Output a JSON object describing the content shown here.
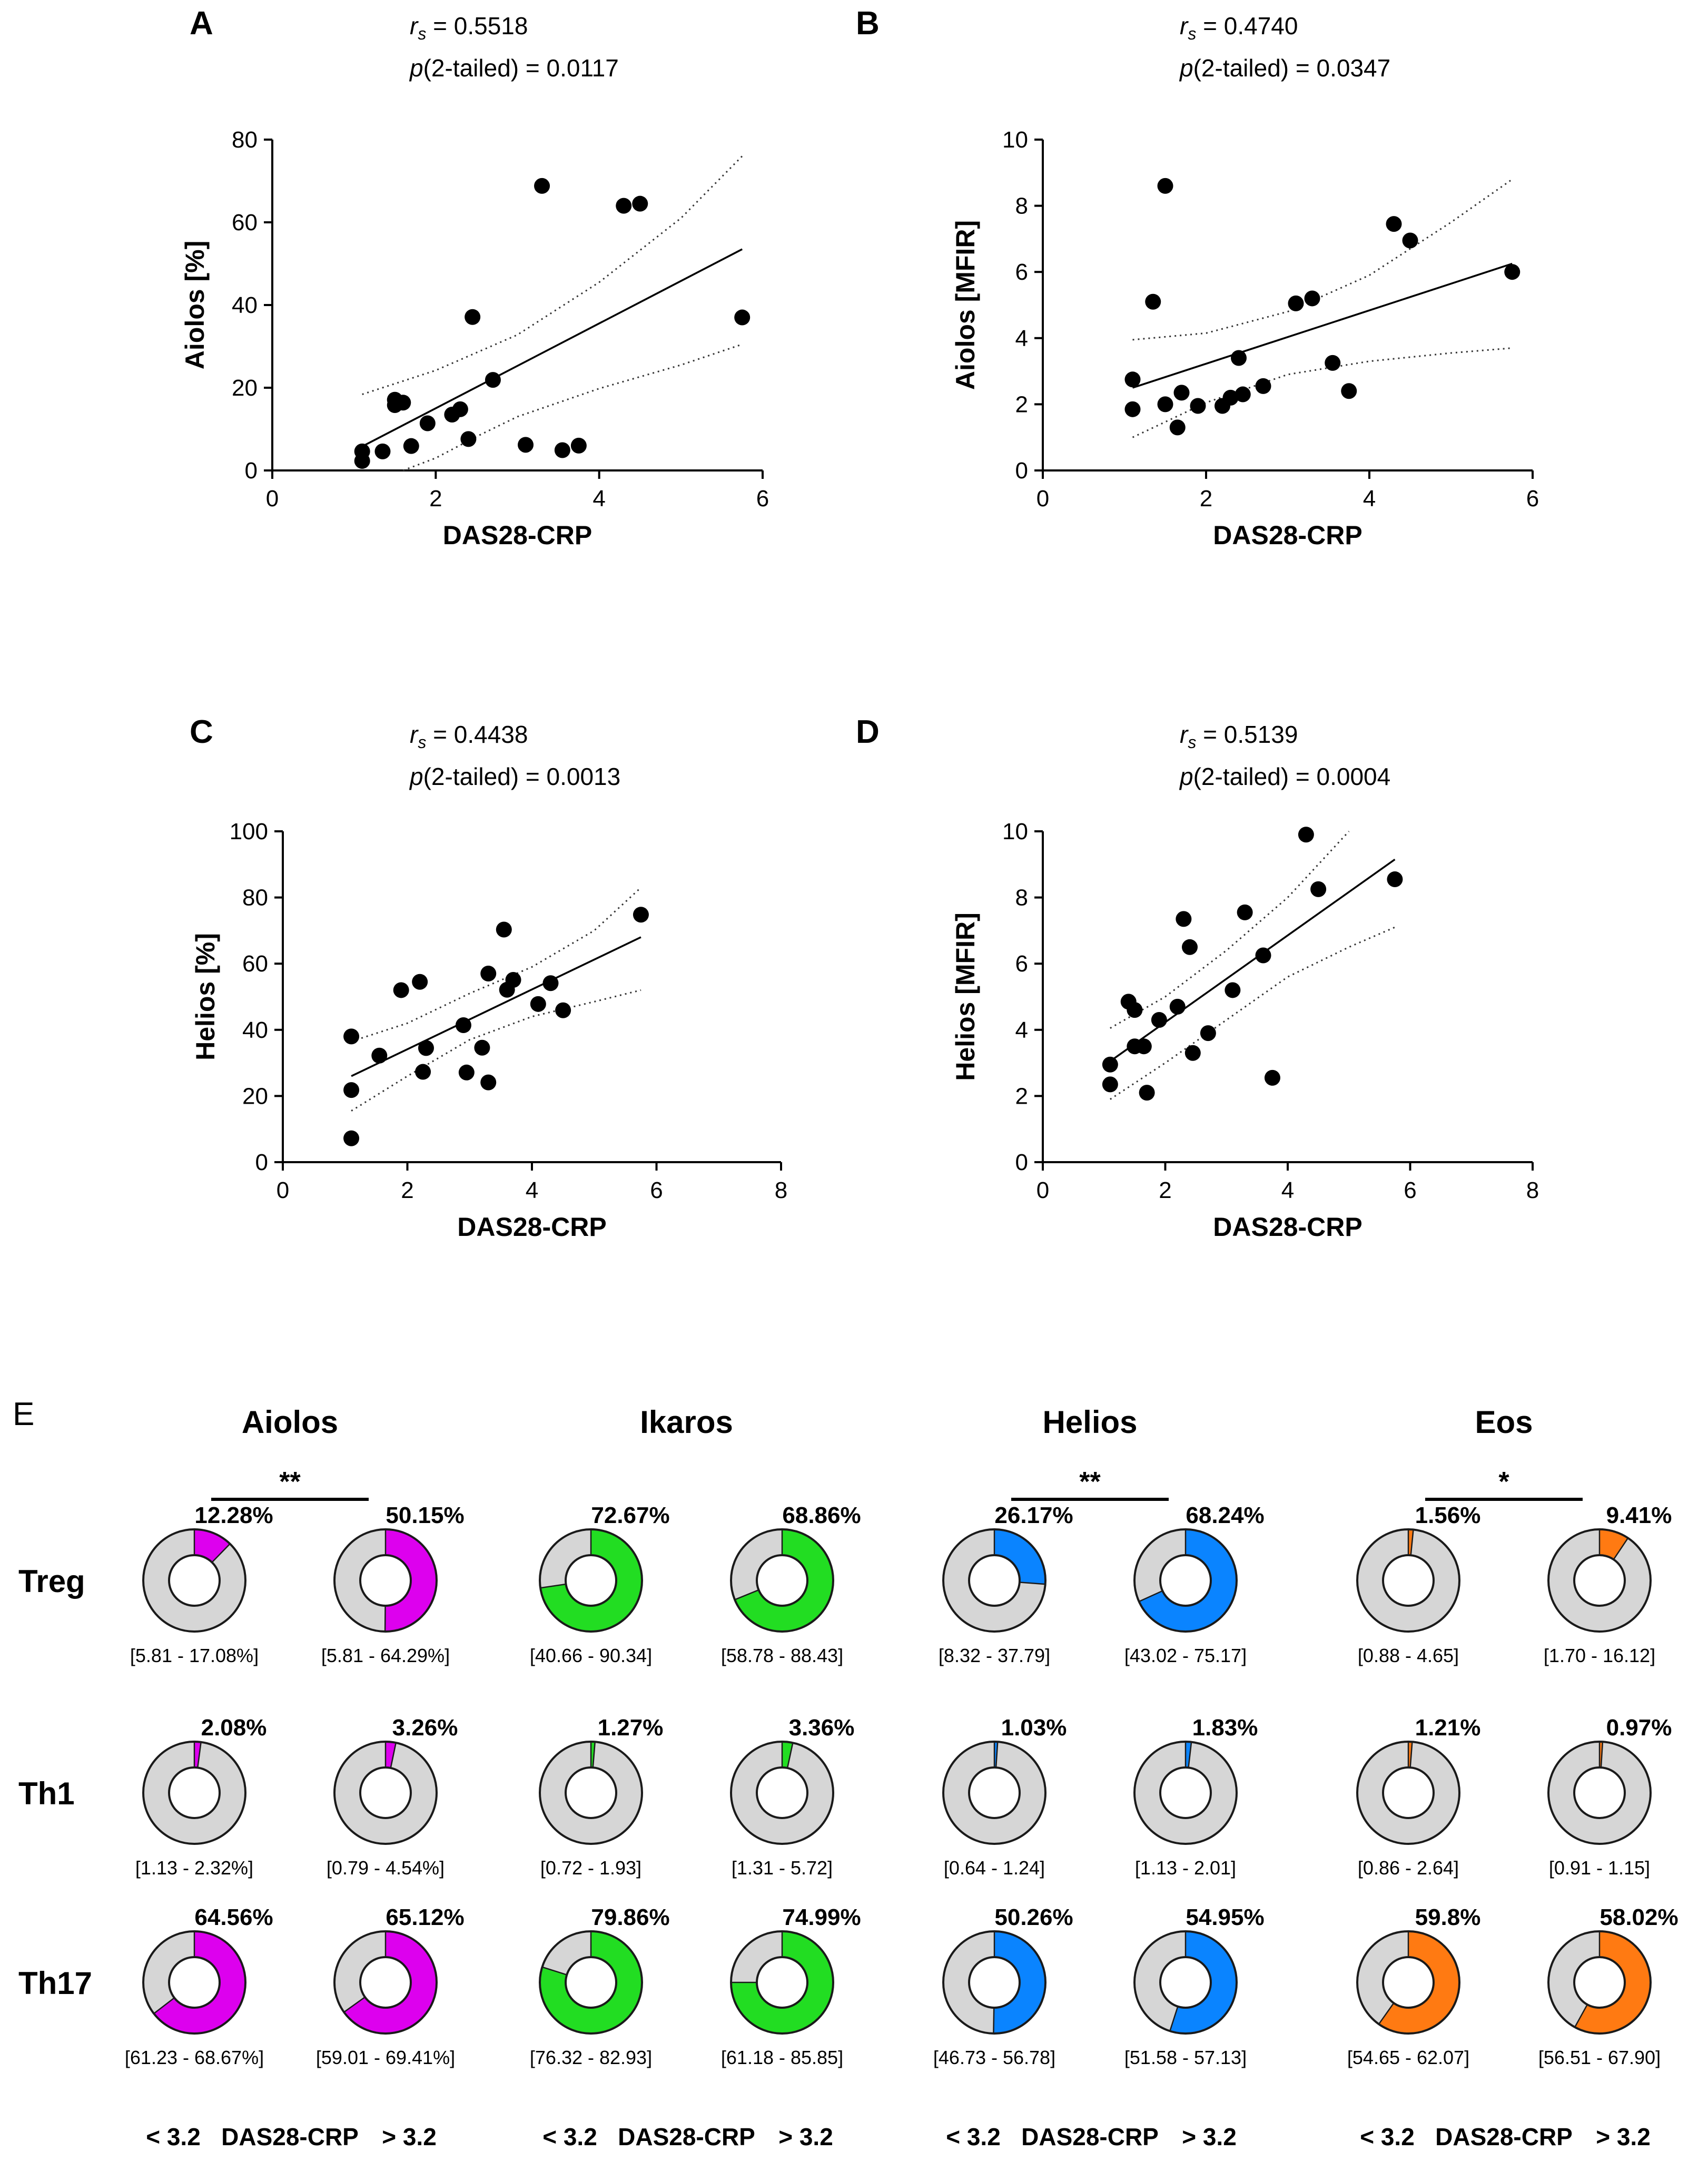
{
  "figure": {
    "panel_e_letter": "E",
    "colors": {
      "Aiolos": "#dd00ee",
      "Ikaros": "#22dd22",
      "Helios": "#0a84ff",
      "Eos": "#ff7a12",
      "rest": "#d6d6d6",
      "outline": "#1a1a1a"
    }
  },
  "chart_data": [
    {
      "type": "scatter",
      "panel": "A",
      "stat_r_prefix": "r",
      "stat_r_sub": "s",
      "stat_r_value": " = 0.5518",
      "stat_p_prefix": "p",
      "stat_p_value": "(2-tailed) = 0.0117",
      "xlabel": "DAS28-CRP",
      "ylabel": "Aiolos [%]",
      "xlim": [
        0,
        6
      ],
      "ylim": [
        0,
        80
      ],
      "xticks": [
        "0",
        "2",
        "4",
        "6"
      ],
      "yticks": [
        "0",
        "20",
        "40",
        "60",
        "80"
      ],
      "fit": {
        "x": [
          1.1,
          5.75
        ],
        "y": [
          5.8,
          53.5
        ]
      },
      "ci_upper": {
        "x": [
          1.1,
          2.0,
          3.0,
          4.0,
          5.0,
          5.75
        ],
        "y": [
          18.4,
          24.2,
          32.8,
          45.5,
          61.0,
          76.0
        ]
      },
      "ci_lower": {
        "x": [
          1.6,
          2.0,
          2.5,
          3.0,
          4.0,
          5.0,
          5.75
        ],
        "y": [
          0,
          3.0,
          8.2,
          13.0,
          19.8,
          25.5,
          30.5
        ]
      },
      "points": [
        {
          "x": 1.1,
          "y": 2.3
        },
        {
          "x": 1.1,
          "y": 4.6
        },
        {
          "x": 1.35,
          "y": 4.6
        },
        {
          "x": 1.5,
          "y": 15.8
        },
        {
          "x": 1.5,
          "y": 17.1
        },
        {
          "x": 1.6,
          "y": 16.4
        },
        {
          "x": 1.7,
          "y": 5.9
        },
        {
          "x": 1.9,
          "y": 11.4
        },
        {
          "x": 2.2,
          "y": 13.5
        },
        {
          "x": 2.3,
          "y": 14.8
        },
        {
          "x": 2.4,
          "y": 7.6
        },
        {
          "x": 2.45,
          "y": 37.1
        },
        {
          "x": 2.7,
          "y": 21.9
        },
        {
          "x": 3.1,
          "y": 6.2
        },
        {
          "x": 3.3,
          "y": 68.8
        },
        {
          "x": 3.55,
          "y": 4.9
        },
        {
          "x": 3.75,
          "y": 6.0
        },
        {
          "x": 4.3,
          "y": 64.0
        },
        {
          "x": 4.5,
          "y": 64.5
        },
        {
          "x": 5.75,
          "y": 37.0
        }
      ]
    },
    {
      "type": "scatter",
      "panel": "B",
      "stat_r_prefix": "r",
      "stat_r_sub": "s",
      "stat_r_value": " = 0.4740",
      "stat_p_prefix": "p",
      "stat_p_value": "(2-tailed) = 0.0347",
      "xlabel": "DAS28-CRP",
      "ylabel": "Aiolos [MFIR]",
      "xlim": [
        0,
        6
      ],
      "ylim": [
        0,
        10
      ],
      "xticks": [
        "0",
        "2",
        "4",
        "6"
      ],
      "yticks": [
        "0",
        "2",
        "4",
        "6",
        "8",
        "10"
      ],
      "fit": {
        "x": [
          1.1,
          5.75
        ],
        "y": [
          2.5,
          6.25
        ]
      },
      "ci_upper": {
        "x": [
          1.1,
          2.0,
          3.0,
          4.0,
          5.0,
          5.75
        ],
        "y": [
          3.95,
          4.15,
          4.8,
          5.9,
          7.5,
          8.8
        ]
      },
      "ci_lower": {
        "x": [
          1.1,
          2.0,
          3.0,
          4.0,
          5.0,
          5.75
        ],
        "y": [
          1.0,
          2.05,
          2.9,
          3.3,
          3.55,
          3.7
        ]
      },
      "points": [
        {
          "x": 1.1,
          "y": 1.85
        },
        {
          "x": 1.1,
          "y": 2.75
        },
        {
          "x": 1.35,
          "y": 5.1
        },
        {
          "x": 1.5,
          "y": 8.6
        },
        {
          "x": 1.5,
          "y": 2.0
        },
        {
          "x": 1.65,
          "y": 1.3
        },
        {
          "x": 1.7,
          "y": 2.35
        },
        {
          "x": 1.9,
          "y": 1.95
        },
        {
          "x": 2.2,
          "y": 1.95
        },
        {
          "x": 2.3,
          "y": 2.2
        },
        {
          "x": 2.4,
          "y": 3.4
        },
        {
          "x": 2.45,
          "y": 2.3
        },
        {
          "x": 2.7,
          "y": 2.55
        },
        {
          "x": 3.1,
          "y": 5.05
        },
        {
          "x": 3.3,
          "y": 5.2
        },
        {
          "x": 3.55,
          "y": 3.25
        },
        {
          "x": 3.75,
          "y": 2.4
        },
        {
          "x": 4.3,
          "y": 7.45
        },
        {
          "x": 4.5,
          "y": 6.95
        },
        {
          "x": 5.75,
          "y": 6.0
        }
      ]
    },
    {
      "type": "scatter",
      "panel": "C",
      "stat_r_prefix": "r",
      "stat_r_sub": "s",
      "stat_r_value": " = 0.4438",
      "stat_p_prefix": "p",
      "stat_p_value": "(2-tailed) = 0.0013",
      "xlabel": "DAS28-CRP",
      "ylabel": "Helios [%]",
      "xlim": [
        0,
        8
      ],
      "ylim": [
        0,
        100
      ],
      "xticks": [
        "0",
        "2",
        "4",
        "6",
        "8"
      ],
      "yticks": [
        "0",
        "20",
        "40",
        "60",
        "80",
        "100"
      ],
      "fit": {
        "x": [
          1.1,
          5.75
        ],
        "y": [
          26.0,
          68.0
        ]
      },
      "ci_upper": {
        "x": [
          1.1,
          2.0,
          3.0,
          4.0,
          5.0,
          5.75
        ],
        "y": [
          36.5,
          42.0,
          51.0,
          59.0,
          70.0,
          83.0
        ]
      },
      "ci_lower": {
        "x": [
          1.1,
          2.0,
          3.0,
          4.0,
          5.0,
          5.75
        ],
        "y": [
          15.5,
          26.0,
          37.0,
          44.0,
          48.5,
          52.0
        ]
      },
      "points": [
        {
          "x": 1.1,
          "y": 7.2
        },
        {
          "x": 1.1,
          "y": 21.8
        },
        {
          "x": 1.1,
          "y": 38.0
        },
        {
          "x": 1.55,
          "y": 32.2
        },
        {
          "x": 1.9,
          "y": 52.0
        },
        {
          "x": 2.2,
          "y": 54.5
        },
        {
          "x": 2.25,
          "y": 27.3
        },
        {
          "x": 2.3,
          "y": 34.5
        },
        {
          "x": 2.9,
          "y": 41.4
        },
        {
          "x": 2.95,
          "y": 27.1
        },
        {
          "x": 3.2,
          "y": 34.6
        },
        {
          "x": 3.3,
          "y": 57.0
        },
        {
          "x": 3.3,
          "y": 24.1
        },
        {
          "x": 3.55,
          "y": 70.3
        },
        {
          "x": 3.6,
          "y": 52.1
        },
        {
          "x": 3.7,
          "y": 55.1
        },
        {
          "x": 4.1,
          "y": 47.8
        },
        {
          "x": 4.3,
          "y": 54.1
        },
        {
          "x": 4.5,
          "y": 45.9
        },
        {
          "x": 5.75,
          "y": 74.8
        }
      ]
    },
    {
      "type": "scatter",
      "panel": "D",
      "stat_r_prefix": "r",
      "stat_r_sub": "s",
      "stat_r_value": " = 0.5139",
      "stat_p_prefix": "p",
      "stat_p_value": "(2-tailed) = 0.0004",
      "xlabel": "DAS28-CRP",
      "ylabel": "Helios [MFIR]",
      "xlim": [
        0,
        8
      ],
      "ylim": [
        0,
        10
      ],
      "xticks": [
        "0",
        "2",
        "4",
        "6",
        "8"
      ],
      "yticks": [
        "0",
        "2",
        "4",
        "6",
        "8",
        "10"
      ],
      "fit": {
        "x": [
          1.1,
          5.75
        ],
        "y": [
          3.05,
          9.15
        ]
      },
      "ci_upper": {
        "x": [
          1.1,
          2.0,
          3.0,
          4.0,
          5.0
        ],
        "y": [
          4.05,
          5.0,
          6.4,
          8.0,
          10.0
        ]
      },
      "ci_lower": {
        "x": [
          1.1,
          2.0,
          3.0,
          4.0,
          5.0,
          5.75
        ],
        "y": [
          1.9,
          3.0,
          4.3,
          5.6,
          6.5,
          7.1
        ]
      },
      "points": [
        {
          "x": 1.1,
          "y": 2.35
        },
        {
          "x": 1.1,
          "y": 2.95
        },
        {
          "x": 1.4,
          "y": 4.85
        },
        {
          "x": 1.5,
          "y": 4.6
        },
        {
          "x": 1.5,
          "y": 3.5
        },
        {
          "x": 1.65,
          "y": 3.5
        },
        {
          "x": 1.7,
          "y": 2.1
        },
        {
          "x": 1.9,
          "y": 4.3
        },
        {
          "x": 2.2,
          "y": 4.7
        },
        {
          "x": 2.3,
          "y": 7.35
        },
        {
          "x": 2.4,
          "y": 6.5
        },
        {
          "x": 2.45,
          "y": 3.3
        },
        {
          "x": 2.7,
          "y": 3.9
        },
        {
          "x": 3.1,
          "y": 5.2
        },
        {
          "x": 3.3,
          "y": 7.55
        },
        {
          "x": 3.6,
          "y": 6.25
        },
        {
          "x": 3.75,
          "y": 2.55
        },
        {
          "x": 4.3,
          "y": 9.9
        },
        {
          "x": 4.5,
          "y": 8.25
        },
        {
          "x": 5.75,
          "y": 8.55
        }
      ]
    },
    {
      "type": "pie",
      "panel": "E",
      "columns": [
        "Aiolos",
        "Ikaros",
        "Helios",
        "Eos"
      ],
      "rows": [
        "Treg",
        "Th1",
        "Th17"
      ],
      "groups_legend": {
        "low": "< 3.2",
        "middle": "DAS28-CRP",
        "high": "> 3.2"
      },
      "significance": [
        {
          "column": "Aiolos",
          "row": "Treg",
          "label": "**"
        },
        {
          "column": "Helios",
          "row": "Treg",
          "label": "**"
        },
        {
          "column": "Eos",
          "row": "Treg",
          "label": "*"
        }
      ],
      "cells": [
        {
          "column": "Aiolos",
          "row": "Treg",
          "low": {
            "value": 12.28,
            "label": "12.28%",
            "range": "[5.81 - 17.08%]"
          },
          "high": {
            "value": 50.15,
            "label": "50.15%",
            "range": "[5.81 - 64.29%]"
          }
        },
        {
          "column": "Ikaros",
          "row": "Treg",
          "low": {
            "value": 72.67,
            "label": "72.67%",
            "range": "[40.66 - 90.34]"
          },
          "high": {
            "value": 68.86,
            "label": "68.86%",
            "range": "[58.78 - 88.43]"
          }
        },
        {
          "column": "Helios",
          "row": "Treg",
          "low": {
            "value": 26.17,
            "label": "26.17%",
            "range": "[8.32 - 37.79]"
          },
          "high": {
            "value": 68.24,
            "label": "68.24%",
            "range": "[43.02 - 75.17]"
          }
        },
        {
          "column": "Eos",
          "row": "Treg",
          "low": {
            "value": 1.56,
            "label": "1.56%",
            "range": "[0.88 - 4.65]"
          },
          "high": {
            "value": 9.41,
            "label": "9.41%",
            "range": "[1.70 - 16.12]"
          }
        },
        {
          "column": "Aiolos",
          "row": "Th1",
          "low": {
            "value": 2.08,
            "label": "2.08%",
            "range": "[1.13 - 2.32%]"
          },
          "high": {
            "value": 3.26,
            "label": "3.26%",
            "range": "[0.79 - 4.54%]"
          }
        },
        {
          "column": "Ikaros",
          "row": "Th1",
          "low": {
            "value": 1.27,
            "label": "1.27%",
            "range": "[0.72 - 1.93]"
          },
          "high": {
            "value": 3.36,
            "label": "3.36%",
            "range": "[1.31 - 5.72]"
          }
        },
        {
          "column": "Helios",
          "row": "Th1",
          "low": {
            "value": 1.03,
            "label": "1.03%",
            "range": "[0.64 - 1.24]"
          },
          "high": {
            "value": 1.83,
            "label": "1.83%",
            "range": "[1.13 - 2.01]"
          }
        },
        {
          "column": "Eos",
          "row": "Th1",
          "low": {
            "value": 1.21,
            "label": "1.21%",
            "range": "[0.86 - 2.64]"
          },
          "high": {
            "value": 0.97,
            "label": "0.97%",
            "range": "[0.91 - 1.15]"
          }
        },
        {
          "column": "Aiolos",
          "row": "Th17",
          "low": {
            "value": 64.56,
            "label": "64.56%",
            "range": "[61.23 - 68.67%]"
          },
          "high": {
            "value": 65.12,
            "label": "65.12%",
            "range": "[59.01 - 69.41%]"
          }
        },
        {
          "column": "Ikaros",
          "row": "Th17",
          "low": {
            "value": 79.86,
            "label": "79.86%",
            "range": "[76.32 - 82.93]"
          },
          "high": {
            "value": 74.99,
            "label": "74.99%",
            "range": "[61.18 - 85.85]"
          }
        },
        {
          "column": "Helios",
          "row": "Th17",
          "low": {
            "value": 50.26,
            "label": "50.26%",
            "range": "[46.73 - 56.78]"
          },
          "high": {
            "value": 54.95,
            "label": "54.95%",
            "range": "[51.58 - 57.13]"
          }
        },
        {
          "column": "Eos",
          "row": "Th17",
          "low": {
            "value": 59.8,
            "label": "59.8%",
            "range": "[54.65 - 62.07]"
          },
          "high": {
            "value": 58.02,
            "label": "58.02%",
            "range": "[56.51 - 67.90]"
          }
        }
      ]
    }
  ]
}
